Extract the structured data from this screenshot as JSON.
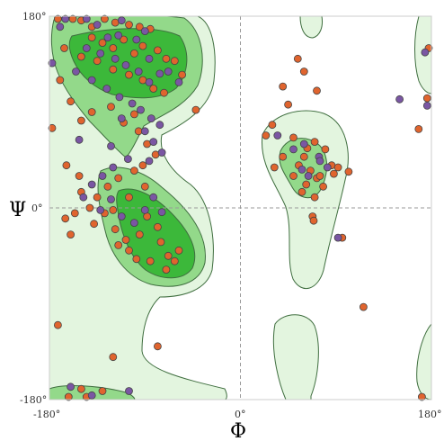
{
  "chart_data": {
    "type": "scatter",
    "title": "",
    "xlabel": "Φ",
    "ylabel": "Ψ",
    "xlim": [
      -180,
      180
    ],
    "ylim": [
      -180,
      180
    ],
    "x_ticks": [
      "-180°",
      "0°",
      "180°"
    ],
    "y_ticks": [
      "180°",
      "0°",
      "-180°"
    ],
    "grid": "dashed lines at 0",
    "colors": {
      "outer_region": "#e3f5df",
      "middle_region": "#93d98a",
      "core_region": "#3cb83a",
      "region_outline": "#3f6e3f",
      "point_orange": "#e0642e",
      "point_purple": "#7a56a3",
      "point_outline": "#444444",
      "frame": "#cccccc"
    },
    "series": [
      {
        "color": "#e0642e",
        "points": [
          [
            -172,
            178
          ],
          [
            -158,
            180
          ],
          [
            -150,
            176
          ],
          [
            -140,
            170
          ],
          [
            -128,
            178
          ],
          [
            -118,
            174
          ],
          [
            -105,
            172
          ],
          [
            -95,
            170
          ],
          [
            -85,
            168
          ],
          [
            -140,
            160
          ],
          [
            -130,
            155
          ],
          [
            -120,
            150
          ],
          [
            -110,
            158
          ],
          [
            -100,
            145
          ],
          [
            -92,
            152
          ],
          [
            -78,
            148
          ],
          [
            -70,
            140
          ],
          [
            -62,
            138
          ],
          [
            -55,
            125
          ],
          [
            -150,
            142
          ],
          [
            -135,
            138
          ],
          [
            -120,
            130
          ],
          [
            -105,
            125
          ],
          [
            -92,
            120
          ],
          [
            -82,
            112
          ],
          [
            -72,
            108
          ],
          [
            -166,
            150
          ],
          [
            -170,
            120
          ],
          [
            -160,
            100
          ],
          [
            -150,
            82
          ],
          [
            -140,
            90
          ],
          [
            -122,
            95
          ],
          [
            -110,
            80
          ],
          [
            -100,
            88
          ],
          [
            -96,
            72
          ],
          [
            -88,
            60
          ],
          [
            -80,
            50
          ],
          [
            -92,
            40
          ],
          [
            -100,
            35
          ],
          [
            -115,
            28
          ],
          [
            -125,
            20
          ],
          [
            -135,
            10
          ],
          [
            -142,
            0
          ],
          [
            -150,
            15
          ],
          [
            -156,
            -5
          ],
          [
            -165,
            -10
          ],
          [
            -160,
            -25
          ],
          [
            -138,
            -15
          ],
          [
            -128,
            -5
          ],
          [
            -118,
            -20
          ],
          [
            -115,
            -35
          ],
          [
            -105,
            -40
          ],
          [
            -95,
            -25
          ],
          [
            -88,
            -8
          ],
          [
            -78,
            -18
          ],
          [
            -75,
            -32
          ],
          [
            -68,
            -45
          ],
          [
            -62,
            -50
          ],
          [
            -58,
            -40
          ],
          [
            -70,
            -58
          ],
          [
            -85,
            -50
          ],
          [
            -98,
            -48
          ],
          [
            -108,
            -30
          ],
          [
            -120,
            -2
          ],
          [
            -105,
            10
          ],
          [
            -90,
            20
          ],
          [
            -172,
            -110
          ],
          [
            -150,
            -170
          ],
          [
            -145,
            -178
          ],
          [
            -130,
            -172
          ],
          [
            -162,
            -178
          ],
          [
            -120,
            -140
          ],
          [
            -78,
            -130
          ],
          [
            -42,
            92
          ],
          [
            -185,
            75
          ],
          [
            -164,
            40
          ],
          [
            -152,
            30
          ],
          [
            54,
            140
          ],
          [
            60,
            128
          ],
          [
            72,
            110
          ],
          [
            40,
            114
          ],
          [
            45,
            97
          ],
          [
            30,
            78
          ],
          [
            24,
            68
          ],
          [
            50,
            66
          ],
          [
            63,
            56
          ],
          [
            70,
            62
          ],
          [
            80,
            55
          ],
          [
            60,
            48
          ],
          [
            55,
            40
          ],
          [
            66,
            35
          ],
          [
            72,
            28
          ],
          [
            62,
            22
          ],
          [
            58,
            15
          ],
          [
            70,
            10
          ],
          [
            75,
            30
          ],
          [
            86,
            40
          ],
          [
            88,
            32
          ],
          [
            92,
            38
          ],
          [
            102,
            34
          ],
          [
            78,
            20
          ],
          [
            68,
            -8
          ],
          [
            69,
            -12
          ],
          [
            96,
            -28
          ],
          [
            116,
            -93
          ],
          [
            176,
            103
          ],
          [
            180,
            150
          ],
          [
            168,
            74
          ],
          [
            171,
            -181
          ],
          [
            40,
            48
          ],
          [
            32,
            38
          ],
          [
            50,
            30
          ]
        ]
      },
      {
        "color": "#7a56a3",
        "points": [
          [
            -165,
            178
          ],
          [
            -145,
            178
          ],
          [
            -135,
            172
          ],
          [
            -112,
            176
          ],
          [
            -90,
            166
          ],
          [
            -125,
            160
          ],
          [
            -115,
            162
          ],
          [
            -98,
            158
          ],
          [
            -86,
            140
          ],
          [
            -76,
            126
          ],
          [
            -145,
            150
          ],
          [
            -132,
            145
          ],
          [
            -118,
            140
          ],
          [
            -108,
            134
          ],
          [
            -96,
            128
          ],
          [
            -86,
            118
          ],
          [
            -68,
            128
          ],
          [
            -58,
            118
          ],
          [
            -155,
            128
          ],
          [
            -140,
            120
          ],
          [
            -126,
            112
          ],
          [
            -114,
            104
          ],
          [
            -102,
            98
          ],
          [
            -94,
            92
          ],
          [
            -84,
            84
          ],
          [
            -76,
            78
          ],
          [
            -90,
            72
          ],
          [
            -82,
            62
          ],
          [
            -74,
            52
          ],
          [
            -86,
            44
          ],
          [
            -106,
            46
          ],
          [
            -120,
            38
          ],
          [
            -130,
            30
          ],
          [
            -140,
            22
          ],
          [
            -148,
            10
          ],
          [
            -132,
            -2
          ],
          [
            -122,
            8
          ],
          [
            -112,
            -8
          ],
          [
            -100,
            -14
          ],
          [
            -90,
            -2
          ],
          [
            -82,
            10
          ],
          [
            -74,
            -4
          ],
          [
            -160,
            -168
          ],
          [
            -140,
            -176
          ],
          [
            -105,
            -172
          ],
          [
            -178,
            136
          ],
          [
            -152,
            64
          ],
          [
            -122,
            58
          ],
          [
            35,
            68
          ],
          [
            60,
            60
          ],
          [
            74,
            48
          ],
          [
            58,
            36
          ],
          [
            50,
            55
          ],
          [
            64,
            30
          ],
          [
            75,
            44
          ],
          [
            82,
            38
          ],
          [
            92,
            -28
          ],
          [
            150,
            102
          ],
          [
            174,
            146
          ],
          [
            176,
            96
          ],
          [
            -170,
            170
          ],
          [
            -112,
            84
          ]
        ]
      }
    ]
  }
}
